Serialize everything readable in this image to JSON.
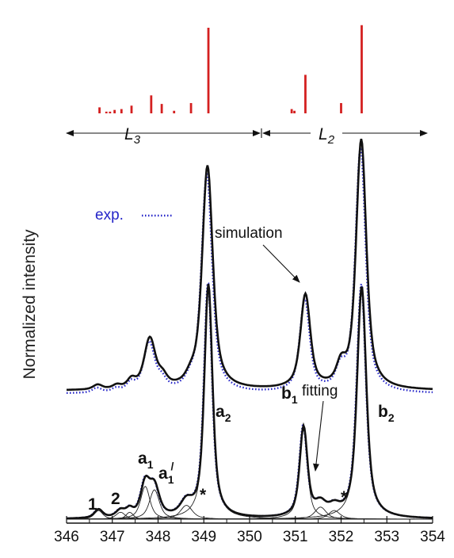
{
  "chart_data": {
    "type": "line",
    "ylabel": "Normalized intensity",
    "xlim": [
      346,
      354
    ],
    "x_ticks": [
      "346",
      "347",
      "348",
      "349",
      "350",
      "351",
      "352",
      "353",
      "354"
    ],
    "edges": [
      {
        "label": "L",
        "sub": "3",
        "range": [
          346,
          350.1
        ]
      },
      {
        "label": "L",
        "sub": "2",
        "range": [
          350.1,
          354
        ]
      }
    ],
    "stick_spectrum": {
      "color": "#d42020",
      "sticks": [
        {
          "x": 346.72,
          "h": 0.07
        },
        {
          "x": 346.87,
          "h": 0.02
        },
        {
          "x": 346.95,
          "h": 0.02
        },
        {
          "x": 347.05,
          "h": 0.04
        },
        {
          "x": 347.2,
          "h": 0.05
        },
        {
          "x": 347.42,
          "h": 0.09
        },
        {
          "x": 347.85,
          "h": 0.21
        },
        {
          "x": 348.08,
          "h": 0.11
        },
        {
          "x": 348.35,
          "h": 0.03
        },
        {
          "x": 348.72,
          "h": 0.12
        },
        {
          "x": 349.1,
          "h": 1.0
        },
        {
          "x": 350.92,
          "h": 0.05
        },
        {
          "x": 350.98,
          "h": 0.03
        },
        {
          "x": 351.22,
          "h": 0.45
        },
        {
          "x": 352.0,
          "h": 0.12
        },
        {
          "x": 352.45,
          "h": 1.03
        }
      ]
    },
    "series": [
      {
        "name": "exp.",
        "style": "dotted",
        "color": "#2424c8"
      },
      {
        "name": "simulation",
        "style": "solid",
        "color": "#111111"
      },
      {
        "name": "fitting",
        "style": "solid",
        "color": "#111111"
      }
    ],
    "peaks": [
      {
        "label": "1",
        "position": 346.7
      },
      {
        "label": "2",
        "position": 347.2
      },
      {
        "label": "a",
        "sub": "1",
        "position": 347.8
      },
      {
        "label": "a",
        "sub": "1",
        "prime": "/",
        "position": 348.05
      },
      {
        "label": "*",
        "position": 348.72
      },
      {
        "label": "a",
        "sub": "2",
        "position": 349.1
      },
      {
        "label": "b",
        "sub": "1",
        "position": 351.2
      },
      {
        "label": "*",
        "position": 351.9
      },
      {
        "label": "b",
        "sub": "2",
        "position": 352.45
      }
    ],
    "annotations": {
      "simulation": "simulation",
      "fitting": "fitting",
      "exp": "exp."
    },
    "legend": "none",
    "grid": false
  }
}
